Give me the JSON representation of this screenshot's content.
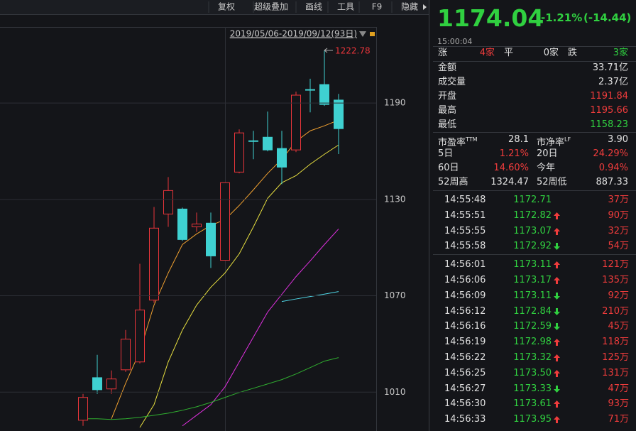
{
  "toolbar": [
    "复权",
    "超级叠加",
    "画线",
    "工具",
    "F9",
    "隐藏"
  ],
  "chart": {
    "type": "candlestick",
    "range_label": "2019/05/06-2019/09/12(93日)",
    "ylim": [
      985.8,
      1236.9
    ],
    "yticks": [
      1010,
      1070,
      1130,
      1190
    ],
    "up_color": "#e8353a",
    "down_color": "#3fd1d1",
    "candles": {
      "open": [
        992.5,
        1019.0,
        1012.0,
        1023.9,
        1028.8,
        1067.3,
        1120.9,
        1124.0,
        1112.9,
        1115.2,
        1092.1,
        1147.0,
        1166.5,
        1168.7,
        1161.7,
        1160.8,
        1198.4,
        1201.5,
        1191.84
      ],
      "high": [
        1008.9,
        1033.2,
        1023.5,
        1048.7,
        1089.9,
        1125.3,
        1143.9,
        1124.9,
        1121.8,
        1121.8,
        1140.4,
        1173.6,
        1172.7,
        1184.7,
        1172.7,
        1197.1,
        1205.1,
        1222.78,
        1195.66
      ],
      "low": [
        989.0,
        1008.9,
        1008.9,
        1022.6,
        1027.9,
        1065.6,
        1112.9,
        1104.1,
        1109.8,
        1087.3,
        1092.1,
        1146.2,
        1155.0,
        1159.9,
        1139.5,
        1159.4,
        1184.2,
        1188.2,
        1158.23
      ],
      "close": [
        1006.7,
        1011.5,
        1018.2,
        1043.0,
        1061.1,
        1112.1,
        1135.5,
        1105.0,
        1114.7,
        1094.8,
        1140.4,
        1171.4,
        1166.5,
        1160.8,
        1150.1,
        1194.9,
        1198.4,
        1189.1,
        1174.04
      ]
    },
    "ma": [
      {
        "color": "#f0a030",
        "values": [
          null,
          null,
          993.4,
          1015.5,
          1035.4,
          1064.2,
          1084.2,
          1101.9,
          1108.5,
          1113.8,
          1117.4,
          1126.2,
          1136.0,
          1146.2,
          1155.0,
          1166.1,
          1172.7,
          1175.8,
          1179.4
        ]
      },
      {
        "color": "#e8e040",
        "values": [
          null,
          null,
          null,
          null,
          988.0,
          1002.2,
          1028.8,
          1048.7,
          1064.2,
          1075.3,
          1084.2,
          1096.1,
          1112.9,
          1130.7,
          1140.4,
          1144.8,
          1151.9,
          1158.1,
          1163.9
        ]
      },
      {
        "color": "#e030e0",
        "values": [
          null,
          null,
          null,
          null,
          null,
          null,
          null,
          989.0,
          995.6,
          1002.2,
          1013.3,
          1028.8,
          1044.3,
          1059.8,
          1070.9,
          1081.9,
          1091.7,
          1101.9,
          1111.6
        ]
      },
      {
        "color": "#30b030",
        "values": [
          993.4,
          993.4,
          993.0,
          993.4,
          994.3,
          995.6,
          996.9,
          998.7,
          1000.9,
          1003.6,
          1006.7,
          1009.8,
          1012.4,
          1015.1,
          1017.8,
          1021.3,
          1025.3,
          1029.3,
          1031.5
        ]
      },
      {
        "color": "#50d8e8",
        "values": [
          null,
          null,
          null,
          null,
          null,
          null,
          null,
          null,
          null,
          null,
          null,
          null,
          null,
          null,
          1066.4,
          1068.0,
          1069.5,
          1071.0,
          1072.6
        ]
      }
    ]
  },
  "quote": {
    "price": "1174.04",
    "change_pct": "-1.21%",
    "change": "(-14.44)",
    "time": "15:00:04",
    "breadth": [
      {
        "label": "涨",
        "value": "4家"
      },
      {
        "label": "平",
        "value": "0家"
      },
      {
        "label": "跌",
        "value": "3家"
      }
    ],
    "metrics": [
      {
        "label": "金额",
        "value": "33.71亿"
      },
      {
        "label": "成交量",
        "value": "2.37亿"
      },
      {
        "label": "开盘",
        "value": "1191.84"
      },
      {
        "label": "最高",
        "value": "1195.66"
      },
      {
        "label": "最低",
        "value": "1158.23"
      }
    ],
    "stats": [
      [
        {
          "label": "市盈率",
          "sup": "TTM",
          "value": "28.1"
        },
        {
          "label": "市净率",
          "sup": "LF",
          "value": "3.90"
        }
      ],
      [
        {
          "label": "5日",
          "value": "1.21%"
        },
        {
          "label": "20日",
          "value": "24.29%"
        }
      ],
      [
        {
          "label": "60日",
          "value": "14.60%"
        },
        {
          "label": "今年",
          "value": "0.94%"
        }
      ],
      [
        {
          "label": "52周高",
          "value": "1324.47"
        },
        {
          "label": "52周低",
          "value": "887.33"
        }
      ]
    ],
    "ticks": [
      {
        "time": "14:55:48",
        "price": "1172.71",
        "dir": null,
        "volume": "37万"
      },
      {
        "time": "14:55:51",
        "price": "1172.82",
        "dir": "up",
        "volume": "90万"
      },
      {
        "time": "14:55:55",
        "price": "1173.07",
        "dir": "up",
        "volume": "32万"
      },
      {
        "time": "14:55:58",
        "price": "1172.92",
        "dir": "down",
        "volume": "54万"
      },
      {
        "time": "14:56:01",
        "price": "1173.11",
        "dir": "up",
        "volume": "121万"
      },
      {
        "time": "14:56:06",
        "price": "1173.17",
        "dir": "up",
        "volume": "135万"
      },
      {
        "time": "14:56:09",
        "price": "1173.11",
        "dir": "down",
        "volume": "92万"
      },
      {
        "time": "14:56:12",
        "price": "1172.84",
        "dir": "down",
        "volume": "210万"
      },
      {
        "time": "14:56:16",
        "price": "1172.59",
        "dir": "down",
        "volume": "45万"
      },
      {
        "time": "14:56:19",
        "price": "1172.98",
        "dir": "up",
        "volume": "118万"
      },
      {
        "time": "14:56:22",
        "price": "1173.32",
        "dir": "up",
        "volume": "125万"
      },
      {
        "time": "14:56:25",
        "price": "1173.50",
        "dir": "up",
        "volume": "131万"
      },
      {
        "time": "14:56:27",
        "price": "1173.33",
        "dir": "down",
        "volume": "47万"
      },
      {
        "time": "14:56:30",
        "price": "1173.61",
        "dir": "up",
        "volume": "93万"
      },
      {
        "time": "14:56:33",
        "price": "1173.95",
        "dir": "up",
        "volume": "71万"
      }
    ]
  }
}
